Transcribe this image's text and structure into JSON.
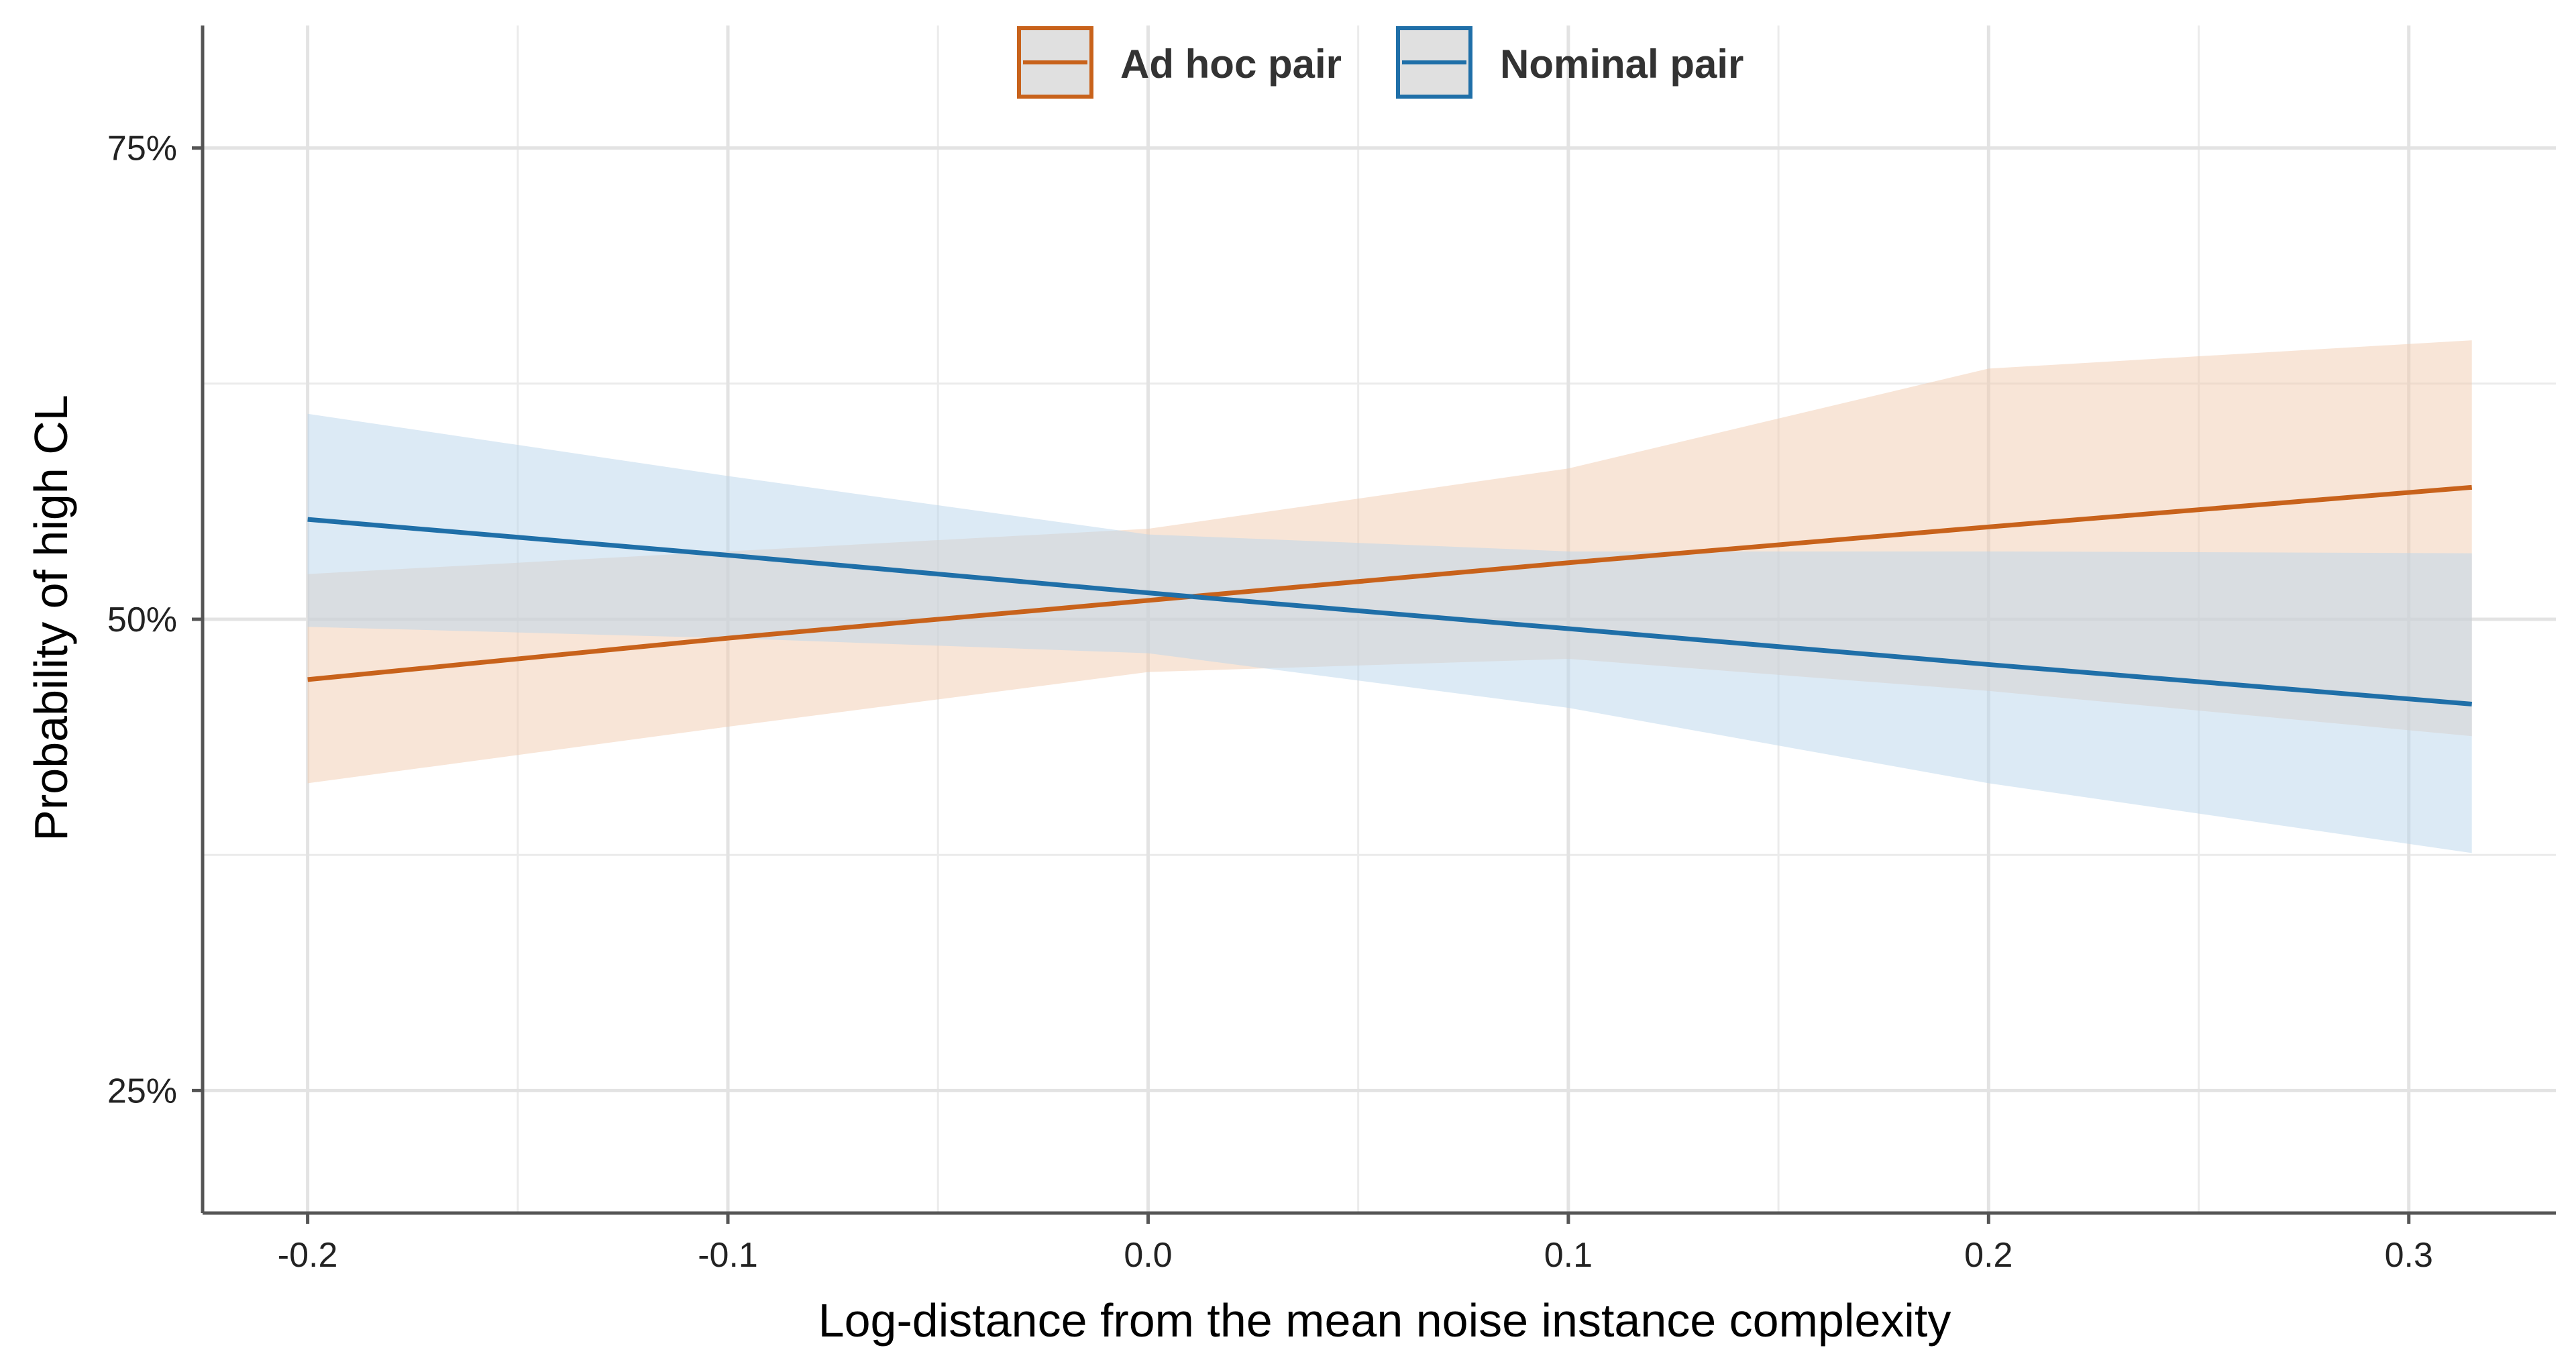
{
  "chart_data": {
    "type": "line",
    "title": "",
    "xlabel": "Log-distance from the mean noise instance complexity",
    "ylabel": "Probability of high CL",
    "xlim": [
      -0.225,
      0.335
    ],
    "ylim": [
      0.185,
      0.815
    ],
    "x_ticks": [
      -0.2,
      -0.1,
      0.0,
      0.1,
      0.2,
      0.3
    ],
    "x_tick_labels": [
      "-0.2",
      "-0.1",
      "0.0",
      "0.1",
      "0.2",
      "0.3"
    ],
    "y_ticks": [
      0.25,
      0.5,
      0.75
    ],
    "y_tick_labels": [
      "25%",
      "50%",
      "75%"
    ],
    "grid": true,
    "legend_position": "top",
    "series": [
      {
        "name": "Ad hoc pair",
        "color": "#C8621B",
        "band_color": "#F1CBAF",
        "x": [
          -0.2,
          -0.1,
          0.0,
          0.1,
          0.2,
          0.315
        ],
        "y": [
          0.468,
          0.49,
          0.51,
          0.53,
          0.549,
          0.57
        ],
        "lower": [
          0.413,
          0.443,
          0.472,
          0.479,
          0.462,
          0.438
        ],
        "upper": [
          0.524,
          0.536,
          0.548,
          0.58,
          0.633,
          0.648
        ]
      },
      {
        "name": "Nominal pair",
        "color": "#1F6FA8",
        "band_color": "#B9D6EC",
        "x": [
          -0.2,
          -0.1,
          0.0,
          0.1,
          0.2,
          0.315
        ],
        "y": [
          0.553,
          0.534,
          0.514,
          0.495,
          0.476,
          0.455
        ],
        "lower": [
          0.496,
          0.49,
          0.482,
          0.453,
          0.413,
          0.376
        ],
        "upper": [
          0.609,
          0.576,
          0.545,
          0.536,
          0.536,
          0.535
        ]
      }
    ]
  }
}
